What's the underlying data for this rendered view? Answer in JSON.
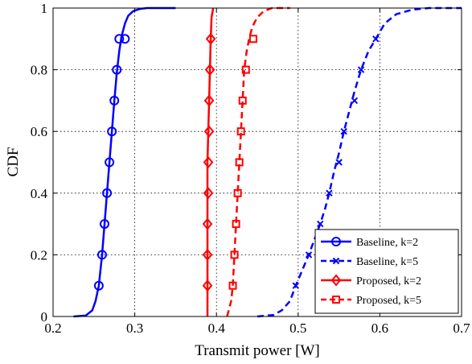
{
  "chart_data": {
    "type": "line",
    "title": "",
    "xlabel": "Transmit power [W]",
    "ylabel": "CDF",
    "xlim": [
      0.2,
      0.7
    ],
    "ylim": [
      0,
      1
    ],
    "x_ticks": [
      0.2,
      0.3,
      0.4,
      0.5,
      0.6,
      0.7
    ],
    "x_tick_labels": [
      "0.2",
      "0.3",
      "0.4",
      "0.5",
      "0.6",
      "0.7"
    ],
    "y_ticks": [
      0,
      0.2,
      0.4,
      0.6,
      0.8,
      1
    ],
    "y_tick_labels": [
      "0",
      "0.2",
      "0.4",
      "0.6",
      "0.8",
      "1"
    ],
    "grid": true,
    "legend_position": "bottom-right",
    "series": [
      {
        "name": "Baseline, k=2",
        "color": "#0000ff",
        "line_style": "solid",
        "marker": "circle",
        "x": [
          0.225,
          0.24,
          0.248,
          0.252,
          0.256,
          0.26,
          0.263,
          0.266,
          0.269,
          0.272,
          0.275,
          0.278,
          0.281,
          0.284,
          0.288,
          0.292,
          0.298,
          0.306,
          0.315,
          0.33,
          0.35
        ],
        "y": [
          0,
          0.003,
          0.02,
          0.05,
          0.1,
          0.2,
          0.3,
          0.4,
          0.5,
          0.6,
          0.7,
          0.79,
          0.86,
          0.91,
          0.95,
          0.975,
          0.99,
          0.997,
          1,
          1,
          1
        ],
        "marker_x": [
          0.256,
          0.26,
          0.263,
          0.266,
          0.269,
          0.272,
          0.275,
          0.278,
          0.281,
          0.288
        ],
        "marker_y": [
          0.1,
          0.2,
          0.3,
          0.4,
          0.5,
          0.6,
          0.7,
          0.8,
          0.9,
          0.9
        ]
      },
      {
        "name": "Baseline, k=5",
        "color": "#0000ff",
        "line_style": "dashed",
        "marker": "x",
        "x": [
          0.45,
          0.47,
          0.48,
          0.49,
          0.497,
          0.505,
          0.513,
          0.52,
          0.527,
          0.533,
          0.538,
          0.544,
          0.55,
          0.556,
          0.562,
          0.569,
          0.577,
          0.586,
          0.595,
          0.606,
          0.62,
          0.64,
          0.66,
          0.68,
          0.7
        ],
        "y": [
          0,
          0.005,
          0.02,
          0.05,
          0.1,
          0.15,
          0.2,
          0.25,
          0.3,
          0.35,
          0.4,
          0.47,
          0.53,
          0.6,
          0.66,
          0.73,
          0.8,
          0.86,
          0.9,
          0.95,
          0.98,
          0.995,
          1,
          1,
          1
        ],
        "marker_x": [
          0.497,
          0.513,
          0.527,
          0.538,
          0.55,
          0.556,
          0.569,
          0.577,
          0.595
        ],
        "marker_y": [
          0.1,
          0.2,
          0.3,
          0.4,
          0.5,
          0.6,
          0.7,
          0.8,
          0.9
        ]
      },
      {
        "name": "Proposed, k=2",
        "color": "#ff0000",
        "line_style": "solid",
        "marker": "diamond",
        "x": [
          0.389,
          0.389,
          0.389,
          0.389,
          0.39,
          0.391,
          0.392,
          0.393,
          0.394,
          0.396
        ],
        "y": [
          0,
          0.1,
          0.3,
          0.5,
          0.6,
          0.7,
          0.8,
          0.9,
          0.97,
          1
        ],
        "marker_x": [
          0.389,
          0.389,
          0.389,
          0.39,
          0.39,
          0.391,
          0.391,
          0.392,
          0.393
        ],
        "marker_y": [
          0.1,
          0.2,
          0.3,
          0.4,
          0.5,
          0.6,
          0.7,
          0.8,
          0.9
        ]
      },
      {
        "name": "Proposed, k=5",
        "color": "#ff0000",
        "line_style": "dashed",
        "marker": "square",
        "x": [
          0.413,
          0.415,
          0.418,
          0.42,
          0.422,
          0.424,
          0.426,
          0.428,
          0.43,
          0.432,
          0.434,
          0.437,
          0.44,
          0.444,
          0.45,
          0.458,
          0.468,
          0.48,
          0.49
        ],
        "y": [
          0,
          0.02,
          0.05,
          0.1,
          0.2,
          0.3,
          0.4,
          0.5,
          0.6,
          0.7,
          0.8,
          0.86,
          0.9,
          0.94,
          0.97,
          0.99,
          1,
          1,
          1
        ],
        "marker_x": [
          0.42,
          0.422,
          0.424,
          0.426,
          0.428,
          0.43,
          0.432,
          0.436,
          0.445
        ],
        "marker_y": [
          0.1,
          0.2,
          0.3,
          0.4,
          0.5,
          0.6,
          0.7,
          0.8,
          0.9
        ]
      }
    ]
  }
}
